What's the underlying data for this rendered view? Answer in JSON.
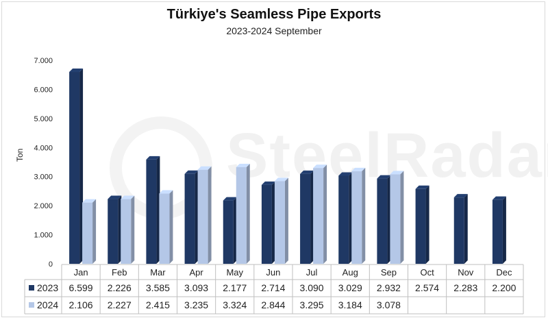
{
  "chart_data": {
    "type": "bar",
    "title": "Türkiye's Seamless Pipe Exports",
    "subtitle": "2023-2024 September",
    "ylabel": "Ton",
    "ylim": [
      0,
      7000
    ],
    "yticks": [
      "0",
      "1.000",
      "2.000",
      "3.000",
      "4.000",
      "5.000",
      "6.000",
      "7.000"
    ],
    "categories": [
      "Jan",
      "Feb",
      "Mar",
      "Apr",
      "May",
      "Jun",
      "Jul",
      "Aug",
      "Sep",
      "Oct",
      "Nov",
      "Dec"
    ],
    "series": [
      {
        "name": "2023",
        "color": "#1f3864",
        "values": [
          6599,
          2226,
          3585,
          3093,
          2177,
          2714,
          3090,
          3029,
          2932,
          2574,
          2283,
          2200
        ],
        "labels": [
          "6.599",
          "2.226",
          "3.585",
          "3.093",
          "2.177",
          "2.714",
          "3.090",
          "3.029",
          "2.932",
          "2.574",
          "2.283",
          "2.200"
        ]
      },
      {
        "name": "2024",
        "color": "#b4c7e7",
        "values": [
          2106,
          2227,
          2415,
          3235,
          3324,
          2844,
          3295,
          3184,
          3078,
          null,
          null,
          null
        ],
        "labels": [
          "2.106",
          "2.227",
          "2.415",
          "3.235",
          "3.324",
          "2.844",
          "3.295",
          "3.184",
          "3.078",
          "",
          "",
          ""
        ]
      }
    ],
    "legend": "data-table-left",
    "grid": false
  },
  "watermark": "SteelRadar"
}
